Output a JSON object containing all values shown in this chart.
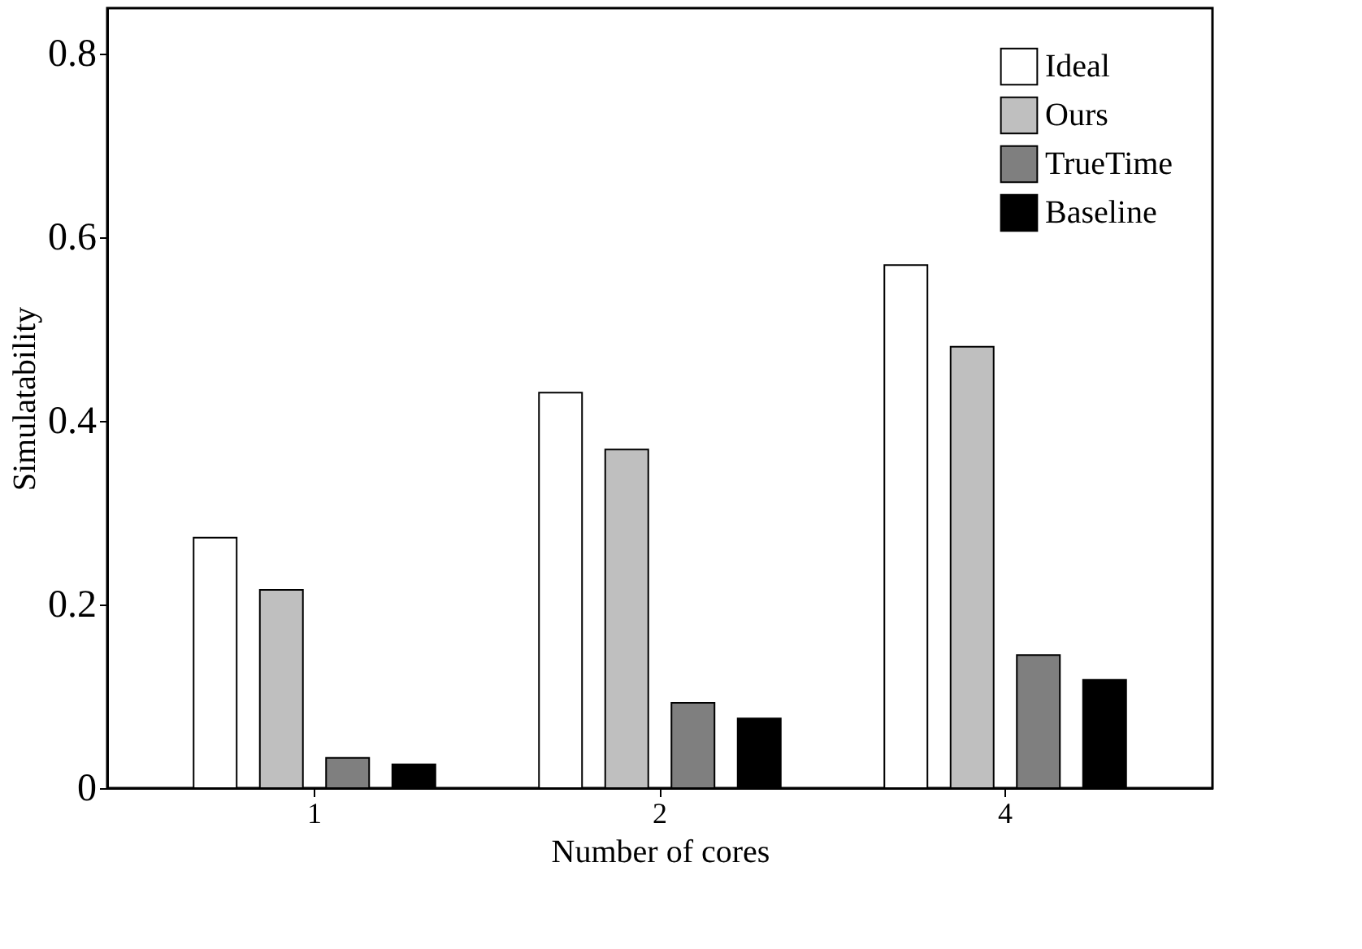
{
  "chart_data": {
    "type": "bar",
    "xlabel": "Number of cores",
    "ylabel": "Simulatability",
    "categories": [
      "1",
      "2",
      "4"
    ],
    "series": [
      {
        "name": "Ideal",
        "color": "#ffffff",
        "values": [
          0.273,
          0.431,
          0.57
        ]
      },
      {
        "name": "Ours",
        "color": "#bfbfbf",
        "values": [
          0.216,
          0.369,
          0.481
        ]
      },
      {
        "name": "TrueTime",
        "color": "#7f7f7f",
        "values": [
          0.033,
          0.093,
          0.145
        ]
      },
      {
        "name": "Baseline",
        "color": "#000000",
        "values": [
          0.026,
          0.076,
          0.118
        ]
      }
    ],
    "ylim": [
      0,
      0.85
    ],
    "yticks": [
      0,
      0.2,
      0.4,
      0.6,
      0.8
    ],
    "grid": false,
    "legend": "top right"
  }
}
